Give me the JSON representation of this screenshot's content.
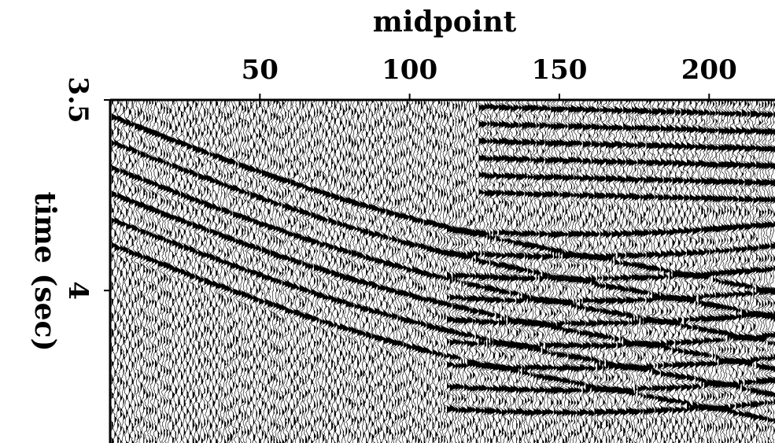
{
  "chart_data": {
    "type": "seismic",
    "xlabel": "midpoint",
    "ylabel": "time (sec)",
    "xlim": [
      0,
      222
    ],
    "xticks": [
      50,
      100,
      150,
      200
    ],
    "ylim": [
      3.5,
      4.4
    ],
    "yticks": [
      3.5,
      4
    ],
    "color": "#000000"
  }
}
